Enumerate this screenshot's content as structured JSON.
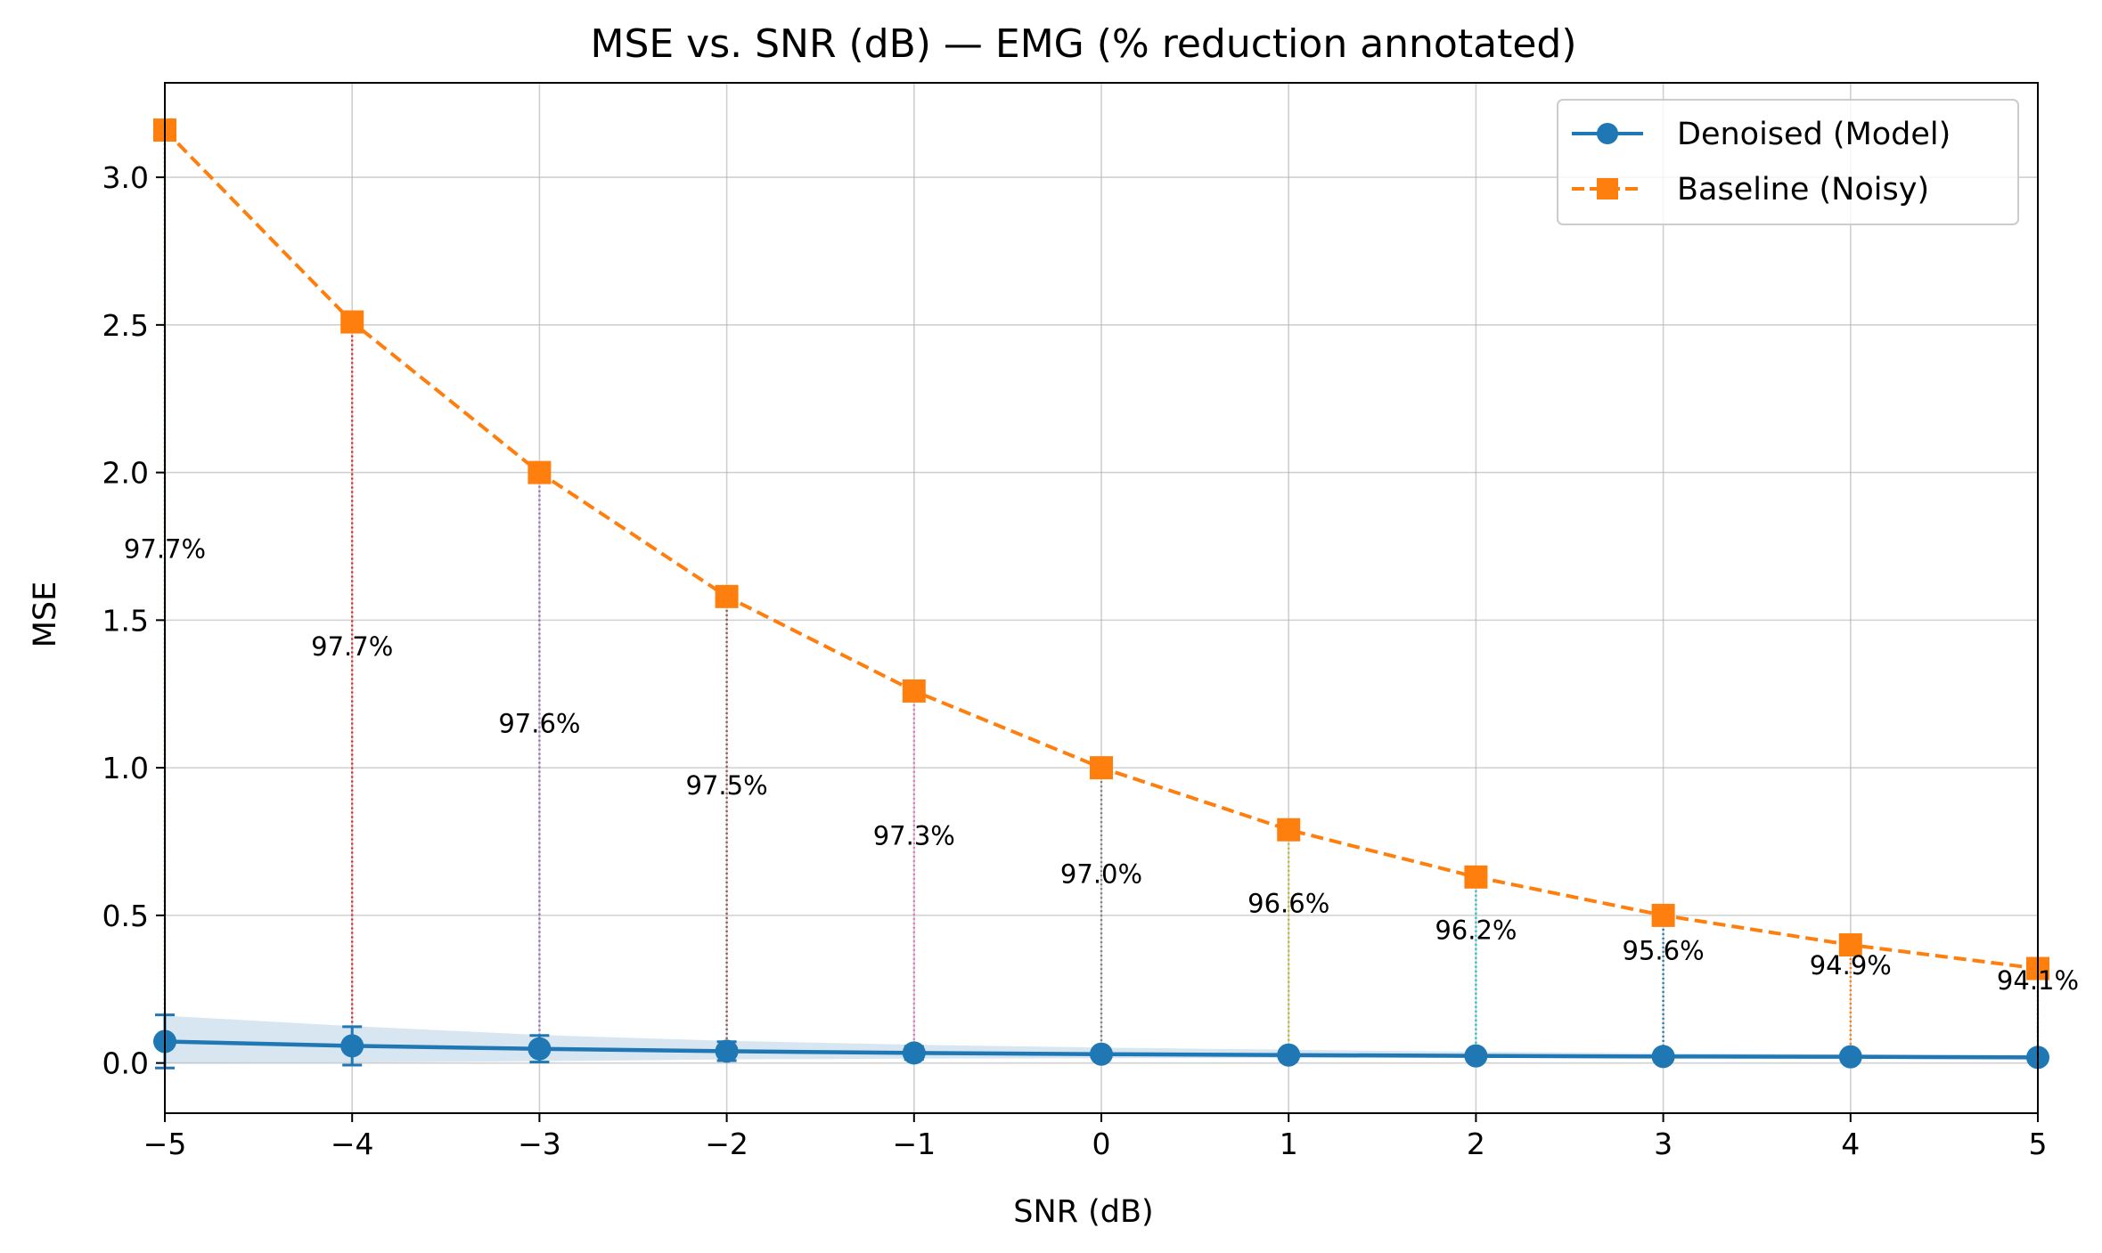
{
  "chart_data": {
    "type": "line",
    "title": "MSE vs. SNR (dB) — EMG (% reduction annotated)",
    "xlabel": "SNR (dB)",
    "ylabel": "MSE",
    "xlim": [
      -5,
      5
    ],
    "ylim": [
      -0.17,
      3.32
    ],
    "x_ticks": [
      -5,
      -4,
      -3,
      -2,
      -1,
      0,
      1,
      2,
      3,
      4,
      5
    ],
    "x_tick_labels": [
      "−5",
      "−4",
      "−3",
      "−2",
      "−1",
      "0",
      "1",
      "2",
      "3",
      "4",
      "5"
    ],
    "y_ticks": [
      0.0,
      0.5,
      1.0,
      1.5,
      2.0,
      2.5,
      3.0
    ],
    "y_tick_labels": [
      "0.0",
      "0.5",
      "1.0",
      "1.5",
      "2.0",
      "2.5",
      "3.0"
    ],
    "grid": true,
    "legend_position": "top-right",
    "x": [
      -5,
      -4,
      -3,
      -2,
      -1,
      0,
      1,
      2,
      3,
      4,
      5
    ],
    "series": [
      {
        "name": "Denoised (Model)",
        "color": "#1f77b4",
        "marker": "circle",
        "linestyle": "solid",
        "values": [
          0.073,
          0.058,
          0.048,
          0.04,
          0.034,
          0.03,
          0.027,
          0.024,
          0.022,
          0.021,
          0.019
        ],
        "error": [
          0.09,
          0.065,
          0.045,
          0.032,
          0.022,
          0.015,
          0.01,
          0.007,
          0.005,
          0.004,
          0.003
        ],
        "band_low": [
          0.0,
          0.002,
          0.006,
          0.012,
          0.015,
          0.016,
          0.017,
          0.017,
          0.017,
          0.017,
          0.016
        ],
        "band_high": [
          0.16,
          0.125,
          0.095,
          0.075,
          0.062,
          0.052,
          0.045,
          0.038,
          0.033,
          0.03,
          0.027
        ]
      },
      {
        "name": "Baseline (Noisy)",
        "color": "#ff7f0e",
        "marker": "square",
        "linestyle": "dashed",
        "values": [
          3.16,
          2.51,
          2.0,
          1.58,
          1.26,
          1.0,
          0.79,
          0.63,
          0.5,
          0.4,
          0.32
        ]
      }
    ],
    "annotations": [
      {
        "x": -5,
        "y": 1.71,
        "text": "97.7%",
        "line_color": "#2ca02c"
      },
      {
        "x": -4,
        "y": 1.38,
        "text": "97.7%",
        "line_color": "#d62728"
      },
      {
        "x": -3,
        "y": 1.12,
        "text": "97.6%",
        "line_color": "#9467bd"
      },
      {
        "x": -2,
        "y": 0.91,
        "text": "97.5%",
        "line_color": "#8c564b"
      },
      {
        "x": -1,
        "y": 0.74,
        "text": "97.3%",
        "line_color": "#e377c2"
      },
      {
        "x": 0,
        "y": 0.61,
        "text": "97.0%",
        "line_color": "#7f7f7f"
      },
      {
        "x": 1,
        "y": 0.51,
        "text": "96.6%",
        "line_color": "#bcbd22"
      },
      {
        "x": 2,
        "y": 0.42,
        "text": "96.2%",
        "line_color": "#17becf"
      },
      {
        "x": 3,
        "y": 0.35,
        "text": "95.6%",
        "line_color": "#1f77b4"
      },
      {
        "x": 4,
        "y": 0.3,
        "text": "94.9%",
        "line_color": "#ff7f0e"
      },
      {
        "x": 5,
        "y": 0.25,
        "text": "94.1%",
        "line_color": "#2ca02c"
      }
    ]
  }
}
